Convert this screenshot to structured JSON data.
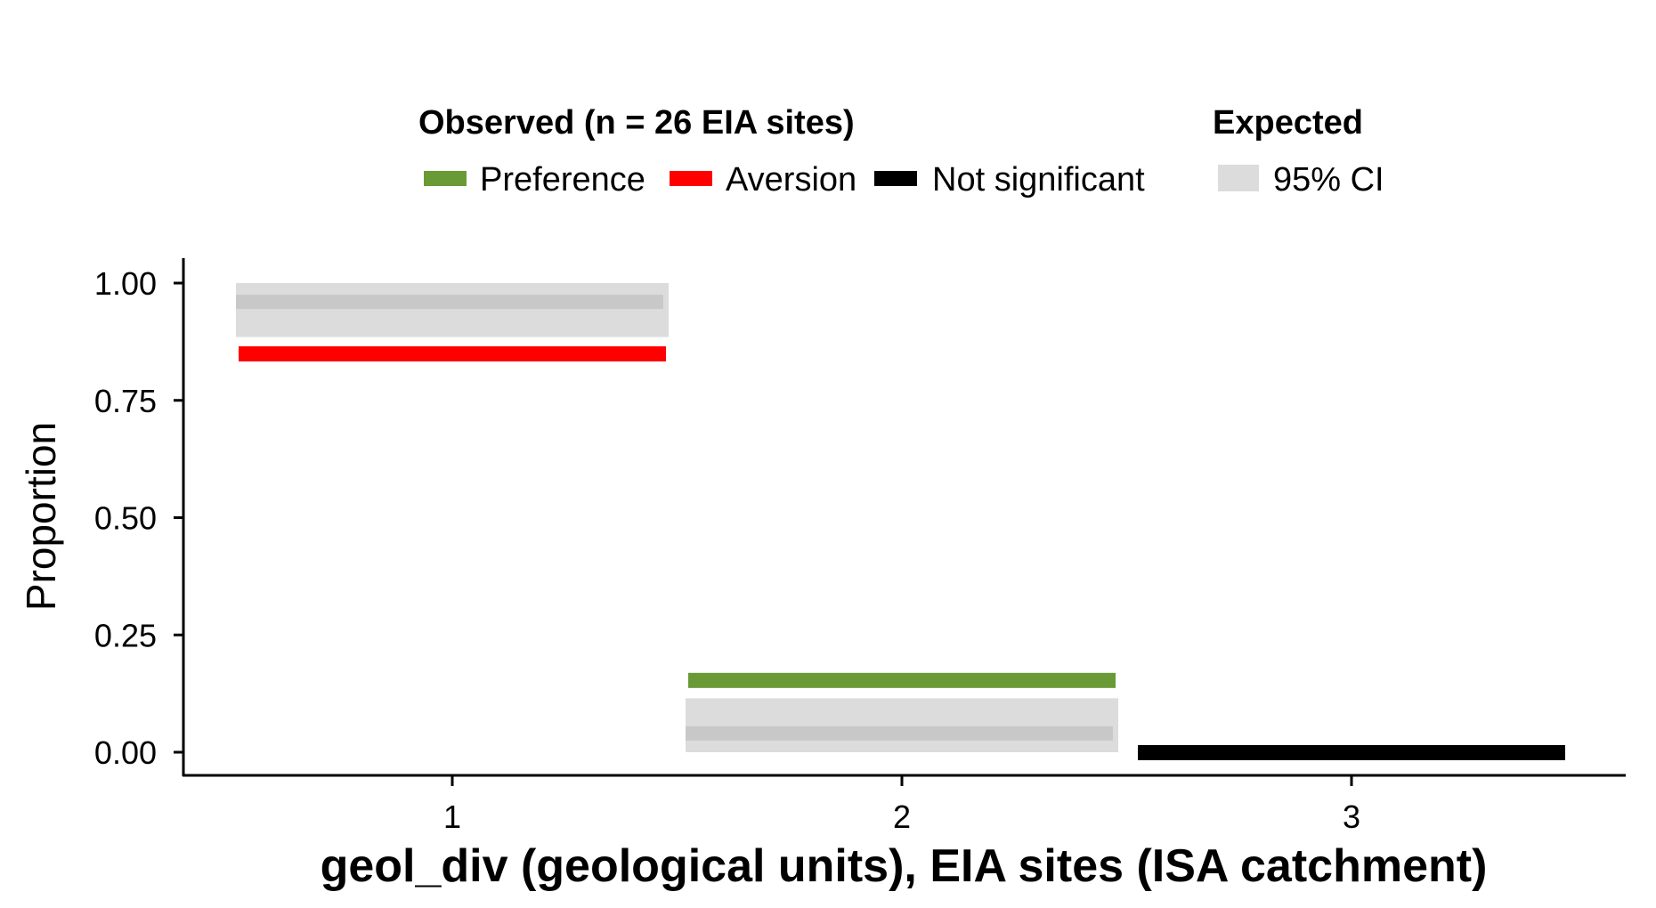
{
  "chart_data": {
    "type": "bar",
    "title": "",
    "xlabel": "geol_div (geological units), EIA sites (ISA catchment)",
    "ylabel": "Proportion",
    "categories": [
      "1",
      "2",
      "3"
    ],
    "ylim": [
      0,
      1
    ],
    "yticks": [
      "0.00",
      "0.25",
      "0.50",
      "0.75",
      "1.00"
    ],
    "ytick_values": [
      0,
      0.25,
      0.5,
      0.75,
      1
    ],
    "grid": false,
    "legend_position": "top",
    "legend": {
      "observed_title": "Observed (n = 26 EIA sites)",
      "expected_title": "Expected",
      "items": [
        {
          "label": "Preference",
          "color": "#6a9a36"
        },
        {
          "label": "Aversion",
          "color": "#ff0000"
        },
        {
          "label": "Not significant",
          "color": "#000000"
        }
      ],
      "ci_label": "95% CI",
      "ci_color": "#dcdcdc",
      "expected_line_color": "#c8c8c8"
    },
    "observed": [
      {
        "category": "1",
        "value": 0.85,
        "status": "Aversion"
      },
      {
        "category": "2",
        "value": 0.154,
        "status": "Preference"
      },
      {
        "category": "3",
        "value": 0.0,
        "status": "Not significant"
      }
    ],
    "expected": [
      {
        "category": "1",
        "value": 0.96,
        "ci": [
          0.885,
          1.0
        ]
      },
      {
        "category": "2",
        "value": 0.04,
        "ci": [
          0.0,
          0.115
        ]
      },
      {
        "category": "3",
        "value": 0.0,
        "ci": [
          0.0,
          0.0
        ]
      }
    ]
  }
}
